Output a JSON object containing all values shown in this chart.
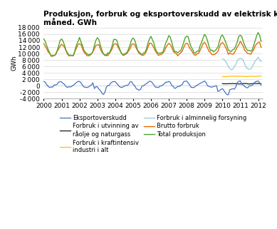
{
  "title": "Produksjon, forbruk og eksportoverskudd av elektrisk kraft per\nmåned. GWh",
  "ylabel": "GWh",
  "ylim": [
    -4000,
    18000
  ],
  "yticks": [
    -4000,
    -2000,
    0,
    2000,
    4000,
    6000,
    8000,
    10000,
    12000,
    14000,
    16000,
    18000
  ],
  "xlim_start": 2000.0,
  "xlim_end": 2012.25,
  "xtick_labels": [
    "2000",
    "2001",
    "2002",
    "2003",
    "2004",
    "2005",
    "2006",
    "2007",
    "2008",
    "2009",
    "2010",
    "2011",
    "2012"
  ],
  "series": {
    "eksportoverskudd": {
      "color": "#4472c4",
      "label": "Eksportoverskudd",
      "linewidth": 0.9
    },
    "forbruk_utvinning": {
      "color": "#1a1a1a",
      "label": "Forbruk i utvinning av\nråolje og naturgass",
      "linewidth": 0.9
    },
    "forbruk_kraftintensiv": {
      "color": "#ffc000",
      "label": "Forbruk i kraftintensiv\nindustri i alt",
      "linewidth": 0.9
    },
    "forbruk_alminnelig": {
      "color": "#92cddc",
      "label": "Forbruk i alminnelig forsyning",
      "linewidth": 0.9
    },
    "brutto_forbruk": {
      "color": "#e26b0a",
      "label": "Brutto forbruk",
      "linewidth": 1.0
    },
    "total_produksjon": {
      "color": "#4ea72a",
      "label": "Total produksjon",
      "linewidth": 1.0
    }
  },
  "background_color": "#ffffff",
  "grid_color": "#d0d0d0",
  "title_fontsize": 7.5,
  "axis_fontsize": 6.5,
  "legend_fontsize": 6.0
}
